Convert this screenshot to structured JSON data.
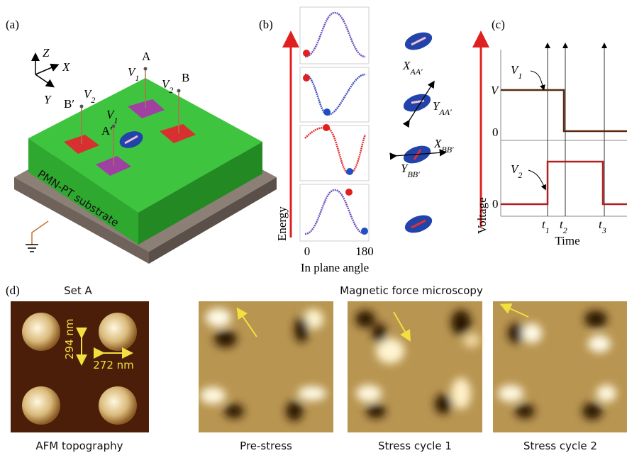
{
  "panel_a": {
    "label": "(a)",
    "axis_z": "Z",
    "axis_x": "X",
    "axis_y": "Y",
    "point_a": "A",
    "point_b": "B",
    "point_b_prime": "B′",
    "point_a_prime": "A′",
    "v_a": {
      "main": "V",
      "sub": "1"
    },
    "v_b": {
      "main": "V",
      "sub": "2"
    },
    "v_b_prime": {
      "main": "V",
      "sub": "2"
    },
    "v_a_prime": {
      "main": "V",
      "sub": "1"
    },
    "substrate": "PMN-PT substrate"
  },
  "panel_b": {
    "label": "(b)",
    "y_axis": "Energy",
    "x_ticks": [
      "0",
      "180"
    ],
    "x_axis": "In plane angle",
    "states": [
      {
        "main": "X",
        "sub": "AA′"
      },
      {
        "main": "Y",
        "sub": "AA′"
      },
      {
        "main": "X",
        "sub": "BB′"
      },
      {
        "main": "Y",
        "sub": "BB′"
      }
    ]
  },
  "panel_c": {
    "label": "(c)",
    "v1": {
      "main": "V",
      "sub": "1"
    },
    "level_v": "V",
    "zero_top": "0",
    "v2": {
      "main": "V",
      "sub": "2"
    },
    "zero_bottom": "0",
    "y_axis": "Voltage",
    "times": [
      {
        "main": "t",
        "sub": "1"
      },
      {
        "main": "t",
        "sub": "2"
      },
      {
        "main": "t",
        "sub": "3"
      }
    ],
    "x_axis": "Time"
  },
  "panel_d": {
    "label": "(d)",
    "set": "Set A",
    "height": "294 nm",
    "width": "272 nm",
    "afm_caption": "AFM topography",
    "mfm_title": "Magnetic force microscopy",
    "captions": [
      "Pre-stress",
      "Stress cycle 1",
      "Stress cycle 2"
    ]
  }
}
